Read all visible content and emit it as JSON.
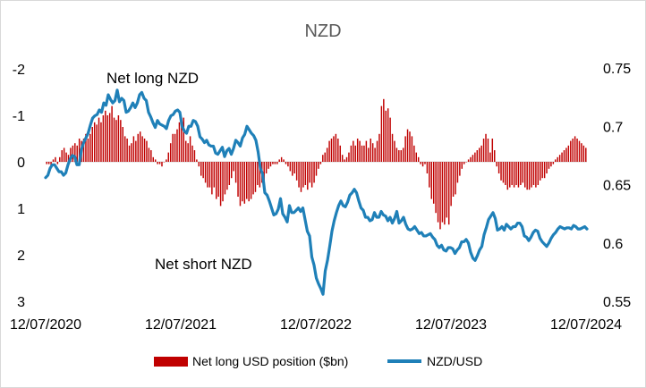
{
  "chart_data": {
    "type": "bar+line",
    "title": "NZD",
    "colors": {
      "bars": "#c00000",
      "line": "#1f80b8"
    },
    "x_axis": {
      "tick_labels": [
        "12/07/2020",
        "12/07/2021",
        "12/07/2022",
        "12/07/2023",
        "12/07/2024"
      ],
      "start": "2020-07-12",
      "end": "2024-07-12",
      "frequency": "weekly"
    },
    "left_axis": {
      "reversed": true,
      "ylim": [
        -2,
        3
      ],
      "tick_labels": [
        "-2",
        "-1",
        "0",
        "1",
        "2",
        "3"
      ]
    },
    "right_axis": {
      "ylim": [
        0.55,
        0.75
      ],
      "tick_labels": [
        "0.75",
        "0.7",
        "0.65",
        "0.6",
        "0.55"
      ]
    },
    "annotations": [
      "Net long NZD",
      "Net short NZD"
    ],
    "legend": {
      "position": "bottom"
    },
    "series": [
      {
        "name": "Net long USD position ($bn)",
        "type": "bar",
        "axis": "left",
        "values": [
          0.05,
          0.05,
          0.1,
          -0.05,
          -0.1,
          0.05,
          -0.1,
          -0.25,
          -0.3,
          -0.2,
          -0.15,
          -0.3,
          -0.35,
          -0.4,
          -0.35,
          -0.5,
          -0.45,
          -0.5,
          -0.6,
          -0.5,
          -0.6,
          -0.75,
          -0.85,
          -0.8,
          -0.95,
          -0.85,
          -1.0,
          -1.1,
          -1.0,
          -1.05,
          -1.2,
          -0.95,
          -0.9,
          -1.0,
          -0.9,
          -0.75,
          -0.55,
          -0.5,
          -0.35,
          -0.4,
          -0.55,
          -0.45,
          -0.6,
          -0.65,
          -0.55,
          -0.5,
          -0.45,
          -0.3,
          -0.25,
          -0.1,
          -0.05,
          0.05,
          0.05,
          0.1,
          0.0,
          -0.05,
          -0.2,
          -0.4,
          -0.6,
          -0.6,
          -0.7,
          -0.85,
          -0.95,
          -0.95,
          -0.45,
          -0.4,
          -0.55,
          -0.35,
          -0.25,
          -0.05,
          0.1,
          0.3,
          0.35,
          0.45,
          0.55,
          0.55,
          0.7,
          0.55,
          0.8,
          0.75,
          0.95,
          0.85,
          0.7,
          0.6,
          0.5,
          0.35,
          0.2,
          0.45,
          0.75,
          0.95,
          0.85,
          0.9,
          0.8,
          0.85,
          0.8,
          0.7,
          0.65,
          0.5,
          0.55,
          0.45,
          0.4,
          0.25,
          0.15,
          0.1,
          0.05,
          0.05,
          0.05,
          -0.05,
          -0.1,
          -0.05,
          0.05,
          0.1,
          0.2,
          0.3,
          0.25,
          0.4,
          0.55,
          0.65,
          0.55,
          0.5,
          0.6,
          0.45,
          0.55,
          0.45,
          0.3,
          0.15,
          0.05,
          -0.15,
          -0.2,
          -0.3,
          -0.45,
          -0.5,
          -0.55,
          -0.6,
          -0.5,
          -0.35,
          -0.15,
          -0.05,
          -0.1,
          -0.2,
          -0.35,
          -0.45,
          -0.35,
          -0.5,
          -0.45,
          -0.35,
          -0.35,
          -0.45,
          -0.3,
          -0.5,
          -0.4,
          -0.3,
          -0.45,
          -0.6,
          -1.2,
          -1.35,
          -1.1,
          -1.15,
          -0.95,
          -0.6,
          -0.45,
          -0.3,
          -0.25,
          -0.25,
          -0.3,
          -0.55,
          -0.7,
          -0.65,
          -0.55,
          -0.35,
          -0.2,
          -0.1,
          0.05,
          0.1,
          0.05,
          0.25,
          0.55,
          0.8,
          0.9,
          1.1,
          1.3,
          1.45,
          1.3,
          1.35,
          1.2,
          1.35,
          0.95,
          0.75,
          0.7,
          0.45,
          0.3,
          0.15,
          0.05,
          0.0,
          -0.05,
          -0.1,
          -0.15,
          -0.2,
          -0.25,
          -0.3,
          -0.35,
          -0.5,
          -0.6,
          -0.5,
          -0.2,
          -0.5,
          -0.25,
          0.1,
          0.25,
          0.4,
          0.45,
          0.5,
          0.6,
          0.55,
          0.5,
          0.55,
          0.5,
          0.55,
          0.5,
          0.45,
          0.55,
          0.6,
          0.6,
          0.55,
          0.5,
          0.55,
          0.5,
          0.4,
          0.35,
          0.35,
          0.25,
          0.15,
          0.1,
          0.05,
          -0.05,
          -0.1,
          -0.15,
          -0.2,
          -0.25,
          -0.3,
          -0.35,
          -0.45,
          -0.5,
          -0.55,
          -0.5,
          -0.45,
          -0.4,
          -0.35,
          -0.3
        ]
      },
      {
        "name": "NZD/USD",
        "type": "line",
        "axis": "right",
        "values": [
          0.656,
          0.658,
          0.664,
          0.667,
          0.667,
          0.664,
          0.661,
          0.661,
          0.658,
          0.66,
          0.667,
          0.672,
          0.675,
          0.674,
          0.667,
          0.667,
          0.68,
          0.686,
          0.69,
          0.694,
          0.701,
          0.707,
          0.709,
          0.71,
          0.714,
          0.712,
          0.72,
          0.718,
          0.727,
          0.723,
          0.72,
          0.722,
          0.731,
          0.721,
          0.724,
          0.722,
          0.712,
          0.713,
          0.716,
          0.72,
          0.716,
          0.72,
          0.727,
          0.729,
          0.724,
          0.722,
          0.712,
          0.708,
          0.703,
          0.699,
          0.705,
          0.702,
          0.701,
          0.7,
          0.698,
          0.705,
          0.709,
          0.71,
          0.713,
          0.714,
          0.712,
          0.7,
          0.696,
          0.694,
          0.7,
          0.7,
          0.705,
          0.704,
          0.7,
          0.691,
          0.689,
          0.686,
          0.688,
          0.684,
          0.683,
          0.683,
          0.677,
          0.676,
          0.679,
          0.682,
          0.674,
          0.679,
          0.681,
          0.676,
          0.681,
          0.688,
          0.686,
          0.683,
          0.69,
          0.693,
          0.7,
          0.697,
          0.694,
          0.692,
          0.688,
          0.678,
          0.664,
          0.659,
          0.643,
          0.641,
          0.636,
          0.63,
          0.624,
          0.625,
          0.629,
          0.638,
          0.625,
          0.622,
          0.618,
          0.632,
          0.626,
          0.626,
          0.628,
          0.63,
          0.627,
          0.63,
          0.62,
          0.61,
          0.606,
          0.588,
          0.581,
          0.57,
          0.565,
          0.561,
          0.556,
          0.576,
          0.585,
          0.597,
          0.61,
          0.619,
          0.626,
          0.632,
          0.636,
          0.632,
          0.631,
          0.635,
          0.641,
          0.643,
          0.646,
          0.643,
          0.636,
          0.63,
          0.628,
          0.622,
          0.622,
          0.619,
          0.62,
          0.626,
          0.622,
          0.622,
          0.627,
          0.624,
          0.623,
          0.619,
          0.622,
          0.617,
          0.621,
          0.627,
          0.617,
          0.619,
          0.622,
          0.616,
          0.612,
          0.611,
          0.612,
          0.614,
          0.611,
          0.608,
          0.609,
          0.606,
          0.606,
          0.607,
          0.608,
          0.605,
          0.603,
          0.598,
          0.596,
          0.598,
          0.594,
          0.593,
          0.596,
          0.596,
          0.595,
          0.591,
          0.594,
          0.596,
          0.601,
          0.601,
          0.603,
          0.6,
          0.592,
          0.587,
          0.585,
          0.589,
          0.594,
          0.597,
          0.607,
          0.613,
          0.62,
          0.623,
          0.626,
          0.621,
          0.611,
          0.612,
          0.614,
          0.611,
          0.616,
          0.614,
          0.612,
          0.614,
          0.614,
          0.617,
          0.617,
          0.614,
          0.606,
          0.605,
          0.602,
          0.605,
          0.609,
          0.611,
          0.61,
          0.604,
          0.601,
          0.599,
          0.597,
          0.6,
          0.604,
          0.607,
          0.609,
          0.612,
          0.614,
          0.613,
          0.612,
          0.613,
          0.613,
          0.612,
          0.615,
          0.614,
          0.612,
          0.612,
          0.613,
          0.614,
          0.612
        ]
      }
    ]
  }
}
